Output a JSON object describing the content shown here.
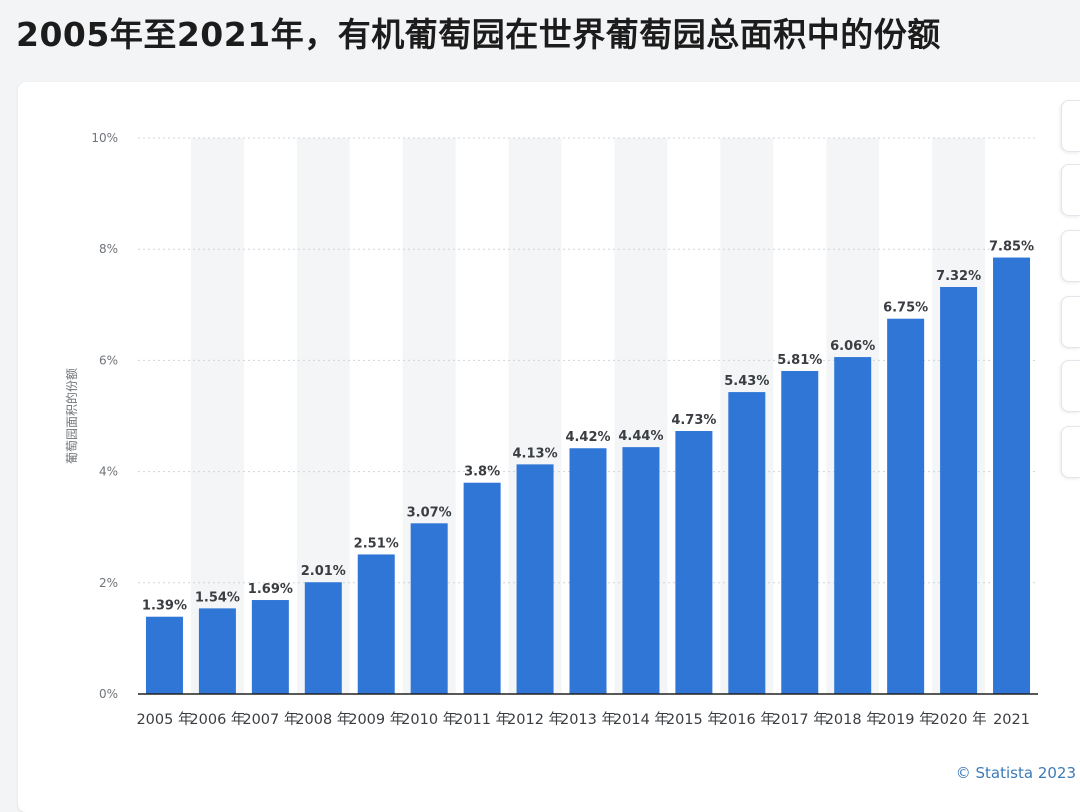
{
  "title": "2005年至2021年，有机葡萄园在世界葡萄园总面积中的份额",
  "credit": "© Statista 2023",
  "colors": {
    "bar": "#2f76d6",
    "band": "#f4f5f7",
    "grid": "#cfd3d8"
  },
  "chart_data": {
    "type": "bar",
    "title": "2005年至2021年，有机葡萄园在世界葡萄园总面积中的份额",
    "xlabel": "",
    "ylabel": "葡萄园面积的份额",
    "ylim": [
      0,
      10
    ],
    "y_ticks": [
      0,
      2,
      4,
      6,
      8,
      10
    ],
    "y_tick_labels": [
      "0%",
      "2%",
      "4%",
      "6%",
      "8%",
      "10%"
    ],
    "categories": [
      "2005 年",
      "2006 年",
      "2007 年",
      "2008 年",
      "2009 年",
      "2010 年",
      "2011 年",
      "2012 年",
      "2013 年",
      "2014 年",
      "2015 年",
      "2016 年",
      "2017 年",
      "2018 年",
      "2019 年",
      "2020 年",
      "2021"
    ],
    "values": [
      1.39,
      1.54,
      1.69,
      2.01,
      2.51,
      3.07,
      3.8,
      4.13,
      4.42,
      4.44,
      4.73,
      5.43,
      5.81,
      6.06,
      6.75,
      7.32,
      7.85
    ],
    "value_labels": [
      "1.39%",
      "1.54%",
      "1.69%",
      "2.01%",
      "2.51%",
      "3.07%",
      "3.8%",
      "4.13%",
      "4.42%",
      "4.44%",
      "4.73%",
      "5.43%",
      "5.81%",
      "6.06%",
      "6.75%",
      "7.32%",
      "7.85%"
    ],
    "grid": true,
    "legend": "none"
  }
}
